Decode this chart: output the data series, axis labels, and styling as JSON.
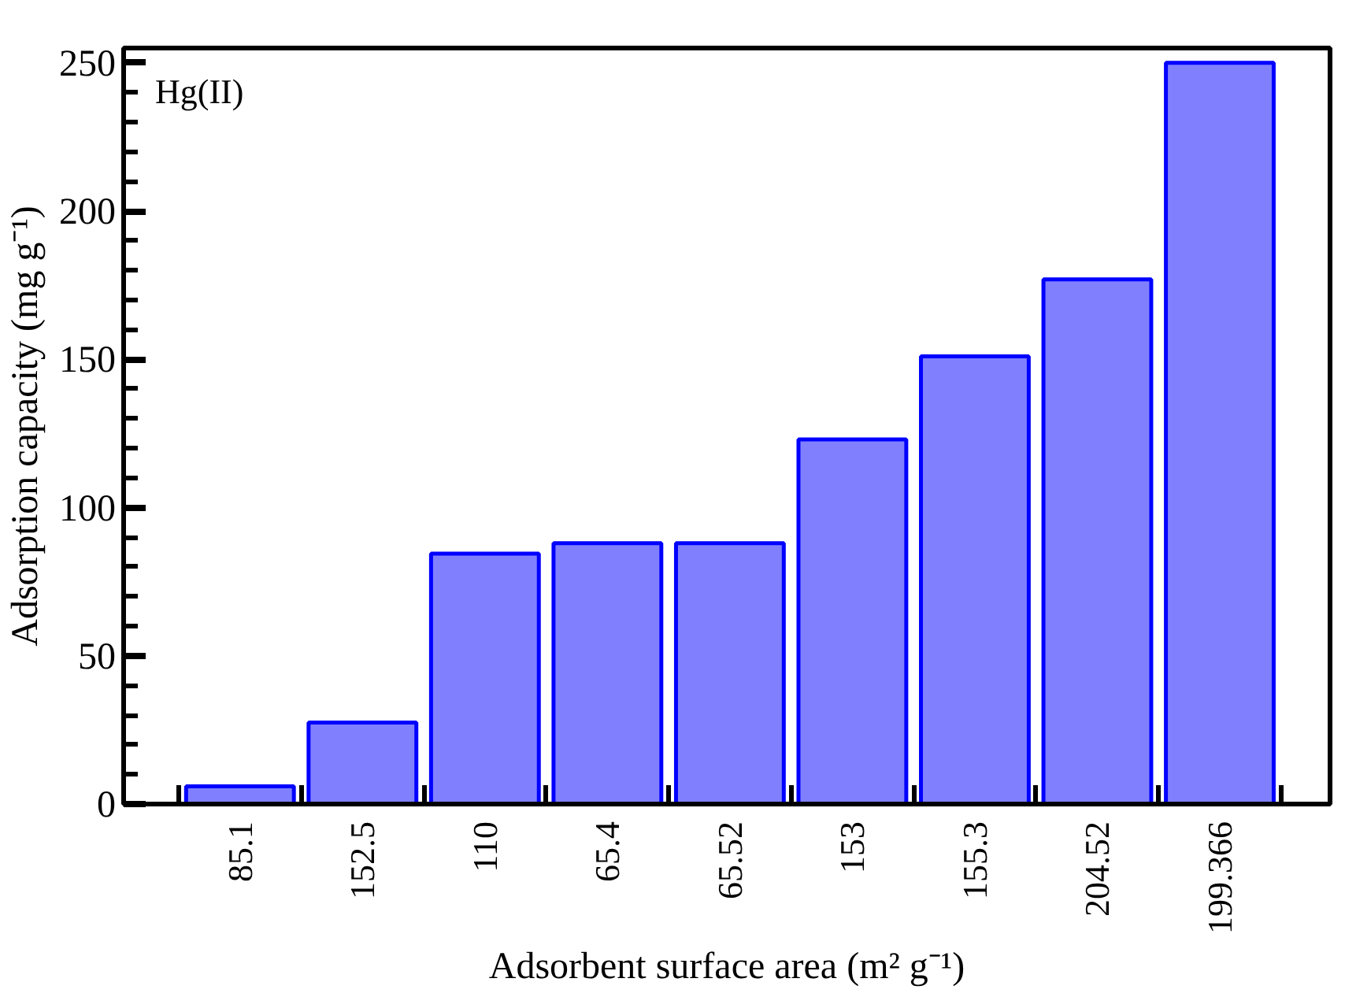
{
  "chart_data": {
    "type": "bar",
    "categories": [
      "85.1",
      "152.5",
      "110",
      "65.4",
      "65.52",
      "153",
      "155.3",
      "204.52",
      "199.366"
    ],
    "values": [
      6,
      27.5,
      84.5,
      88,
      88,
      123,
      151,
      177,
      250
    ],
    "color": "#8080ff",
    "xlabel": "Adsorbent surface area (m² g⁻¹)",
    "ylabel": "Adsorption capacity (mg g⁻¹)",
    "annotations": [
      "Hg(II)"
    ],
    "ylim": [
      0,
      255
    ],
    "yticks": [
      0,
      50,
      100,
      150,
      200,
      250
    ],
    "grid": false
  }
}
